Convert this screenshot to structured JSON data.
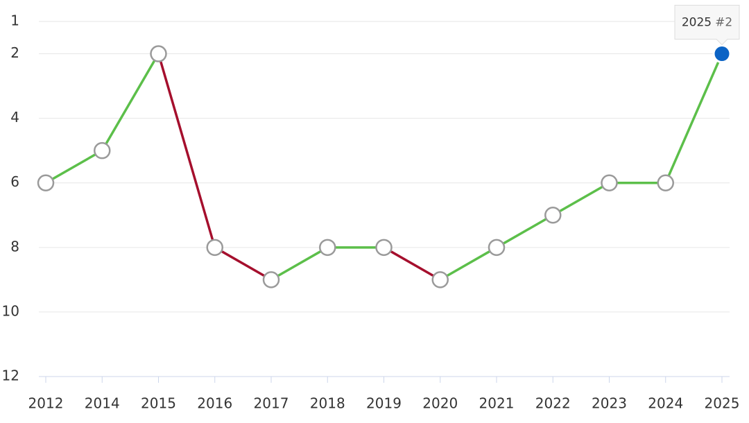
{
  "chart_data": {
    "type": "line",
    "categories": [
      "2012",
      "2014",
      "2015",
      "2016",
      "2017",
      "2018",
      "2019",
      "2020",
      "2021",
      "2022",
      "2023",
      "2024",
      "2025"
    ],
    "series": [
      {
        "color": "#5cbf4a",
        "decline_color": "#a50f2d",
        "values": [
          6,
          5,
          2,
          8,
          9,
          8,
          8,
          9,
          8,
          7,
          6,
          6,
          2
        ]
      }
    ],
    "ylim": [
      1,
      12
    ],
    "y_reversed": true,
    "yticks": [
      1,
      2,
      4,
      6,
      8,
      10,
      12
    ],
    "grid": true,
    "tooltip": {
      "x": "2025",
      "label": "#2",
      "value": 2,
      "color": "#0b63c5"
    }
  }
}
